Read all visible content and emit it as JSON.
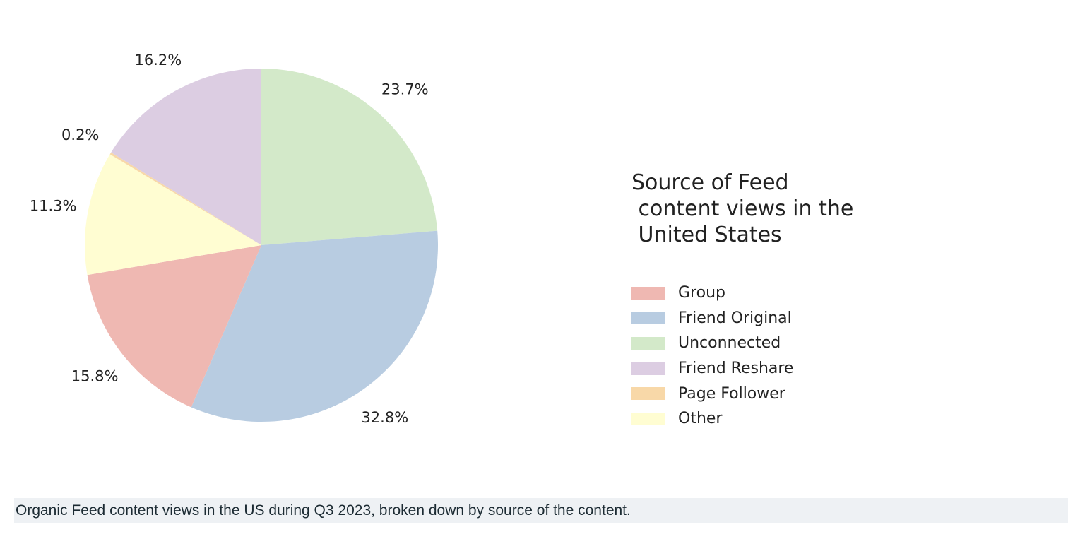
{
  "chart_data": {
    "type": "pie",
    "start": "top",
    "direction": "clockwise",
    "slices": [
      {
        "label": "Unconnected",
        "value": 23.7,
        "display": "23.7%",
        "color": "#d3e9c9"
      },
      {
        "label": "Friend Original",
        "value": 32.8,
        "display": "32.8%",
        "color": "#b8cce1"
      },
      {
        "label": "Group",
        "value": 15.8,
        "display": "15.8%",
        "color": "#efb8b2"
      },
      {
        "label": "Other",
        "value": 11.3,
        "display": "11.3%",
        "color": "#fffdd2"
      },
      {
        "label": "Page Follower",
        "value": 0.2,
        "display": "0.2%",
        "color": "#f8d8a8"
      },
      {
        "label": "Friend Reshare",
        "value": 16.2,
        "display": "16.2%",
        "color": "#dccde2"
      }
    ],
    "legend": {
      "title": "Source of Feed\n content views in the\n United States",
      "placement": "right",
      "entries": [
        {
          "label": "Group",
          "color": "#efb8b2"
        },
        {
          "label": "Friend Original",
          "color": "#b8cce1"
        },
        {
          "label": "Unconnected",
          "color": "#d3e9c9"
        },
        {
          "label": "Friend Reshare",
          "color": "#dccde2"
        },
        {
          "label": "Page Follower",
          "color": "#f8d8a8"
        },
        {
          "label": "Other",
          "color": "#fffdd2"
        }
      ]
    }
  },
  "caption": "Organic Feed content views in the US during Q3 2023, broken down by source of the content."
}
